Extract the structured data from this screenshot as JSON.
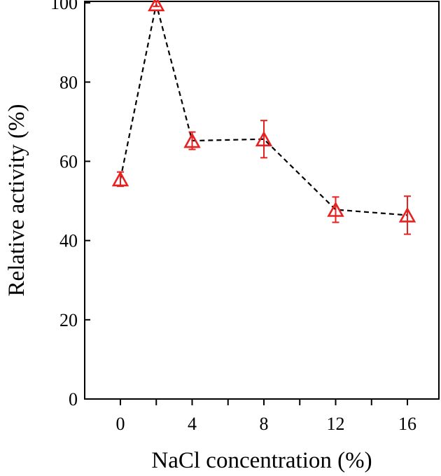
{
  "chart_data": {
    "type": "scatter",
    "xlabel": "NaCl concentration (%)",
    "ylabel": "Relative activity (%)",
    "x_tick_labels": [
      "0",
      "4",
      "8",
      "12",
      "16"
    ],
    "y_tick_labels": [
      "0",
      "20",
      "40",
      "60",
      "80",
      "100"
    ],
    "ylim": [
      0,
      100
    ],
    "categories": [
      "0",
      "2",
      "4",
      "8",
      "12",
      "16"
    ],
    "series": [
      {
        "values": [
          55.5,
          99.7,
          65.2,
          65.6,
          47.8,
          46.4
        ],
        "errors": [
          1.8,
          0.6,
          2.2,
          4.7,
          3.2,
          4.8
        ],
        "marker": "open-triangle",
        "line_style": "dashed",
        "color": "#e8201f"
      }
    ],
    "grid": false,
    "legend": "none"
  }
}
